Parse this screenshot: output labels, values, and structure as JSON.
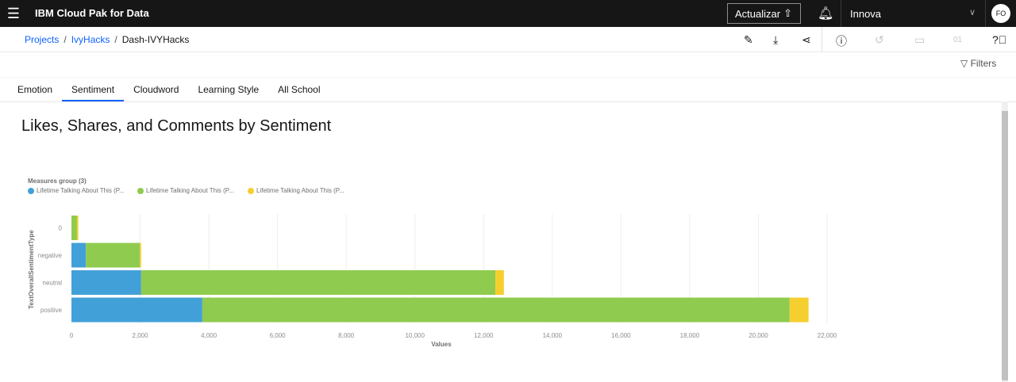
{
  "header": {
    "menu_icon": "hamburger-icon",
    "brand": "IBM Cloud Pak for Data",
    "update_label": "Actualizar",
    "account": "Innova",
    "avatar": "FO"
  },
  "breadcrumb": [
    {
      "label": "Projects"
    },
    {
      "label": "IvyHacks"
    },
    {
      "label": "Dash-IVYHacks"
    }
  ],
  "toolbar": [
    "edit-icon",
    "download-icon",
    "share-icon",
    "info-icon",
    "history-icon",
    "comment-icon",
    "data-icon",
    "help-icon"
  ],
  "filters_label": "Filters",
  "tabs": [
    {
      "label": "Emotion"
    },
    {
      "label": "Sentiment",
      "active": true
    },
    {
      "label": "Cloudword"
    },
    {
      "label": "Learning Style"
    },
    {
      "label": "All School"
    }
  ],
  "chart_title": "Likes, Shares, and Comments by Sentiment",
  "chart_data": {
    "type": "bar",
    "orientation": "horizontal",
    "stacked": true,
    "legend_title": "Measures group (3)",
    "categories": [
      "0",
      "negative",
      "neutral",
      "positive"
    ],
    "ylabel": "TextOverallSentimentType",
    "xlabel": "Values",
    "xlim": [
      0,
      22000
    ],
    "xticks": [
      "0",
      "2,000",
      "4,000",
      "6,000",
      "8,000",
      "10,000",
      "12,000",
      "14,000",
      "16,000",
      "18,000",
      "20,000",
      "22,000"
    ],
    "grid": true,
    "series": [
      {
        "name": "Lifetime Talking About This (P...",
        "color": "#42a0d8",
        "values": [
          0,
          420,
          2030,
          3810
        ]
      },
      {
        "name": "Lifetime Talking About This (P...",
        "color": "#8fcb4e",
        "values": [
          160,
          1570,
          10310,
          17100
        ]
      },
      {
        "name": "Lifetime Talking About This (P...",
        "color": "#f5cf2f",
        "values": [
          40,
          40,
          250,
          550
        ]
      }
    ]
  }
}
